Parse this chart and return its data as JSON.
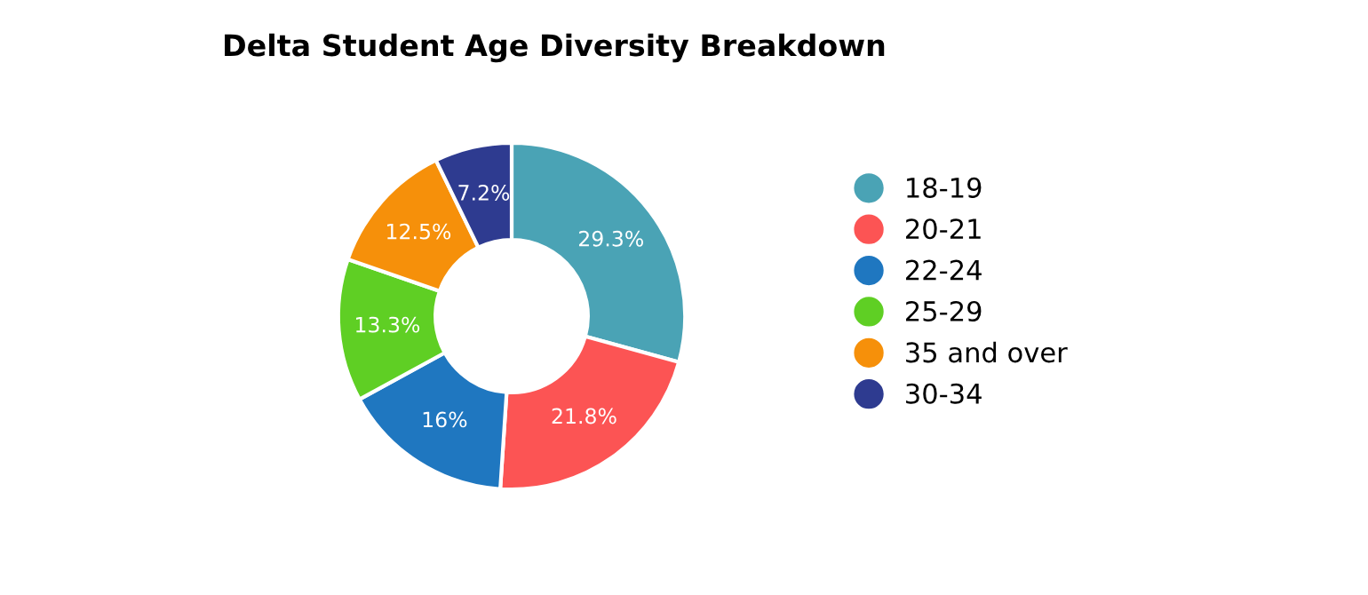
{
  "chart_data": {
    "type": "donut",
    "title": "Delta Student Age Diversity Breakdown",
    "categories": [
      "18-19",
      "20-21",
      "22-24",
      "25-29",
      "35 and over",
      "30-34"
    ],
    "values": [
      29.3,
      21.8,
      16,
      13.3,
      12.5,
      7.2
    ],
    "colors": [
      "#4aa3b5",
      "#fc5454",
      "#1f77c0",
      "#5fcf24",
      "#f6900a",
      "#2e3b90"
    ],
    "value_labels": [
      "29.3%",
      "21.8%",
      "16%",
      "13.3%",
      "12.5%",
      "7.2%"
    ],
    "legend": "right"
  }
}
